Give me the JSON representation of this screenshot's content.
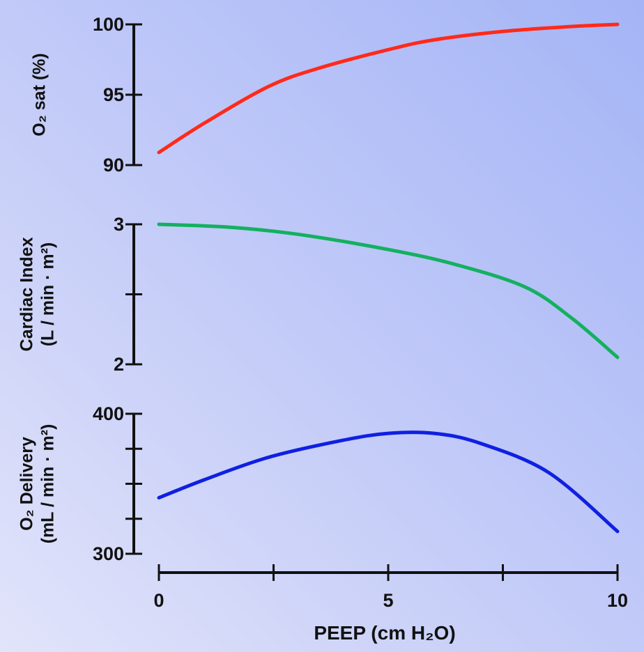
{
  "chart_data": [
    {
      "type": "line",
      "ylabel": "O₂ sat (%)",
      "ylim": [
        90,
        100
      ],
      "yticks": [
        90,
        95,
        100
      ],
      "yticklabels": [
        "90",
        "95",
        "100"
      ],
      "color": "#ff2a1a",
      "x": [
        0,
        1,
        2.4,
        3.5,
        5,
        6,
        7.5,
        9,
        10
      ],
      "y": [
        90.9,
        93.0,
        95.6,
        96.9,
        98.2,
        98.9,
        99.5,
        99.85,
        100
      ]
    },
    {
      "type": "line",
      "ylabel": [
        "Cardiac Index",
        "(L / min · m²)"
      ],
      "ylim": [
        2,
        3
      ],
      "yticks": [
        2,
        2.5,
        3
      ],
      "yticklabels": [
        "2",
        "",
        "3"
      ],
      "color": "#14b060",
      "x": [
        0,
        1.5,
        3,
        5,
        6.5,
        8,
        9,
        10
      ],
      "y": [
        3.0,
        2.98,
        2.93,
        2.82,
        2.71,
        2.55,
        2.33,
        2.05
      ]
    },
    {
      "type": "line",
      "ylabel": [
        "O₂ Delivery",
        "(mL / min · m²)"
      ],
      "ylim": [
        300,
        400
      ],
      "yticks": [
        300,
        325,
        350,
        375,
        400
      ],
      "yticklabels": [
        "300",
        "",
        "",
        "",
        "400"
      ],
      "color": "#1020e0",
      "x": [
        0,
        1,
        2.4,
        4,
        5,
        6,
        7,
        8.5,
        10
      ],
      "y": [
        340,
        353,
        369,
        381,
        386,
        386,
        379,
        358,
        316
      ]
    }
  ],
  "xaxis": {
    "label": "PEEP (cm H₂O)",
    "xlim": [
      0,
      10
    ],
    "ticks": [
      0,
      2.5,
      5,
      7.5,
      10
    ],
    "ticklabels": [
      "0",
      "",
      "5",
      "",
      "10"
    ]
  }
}
